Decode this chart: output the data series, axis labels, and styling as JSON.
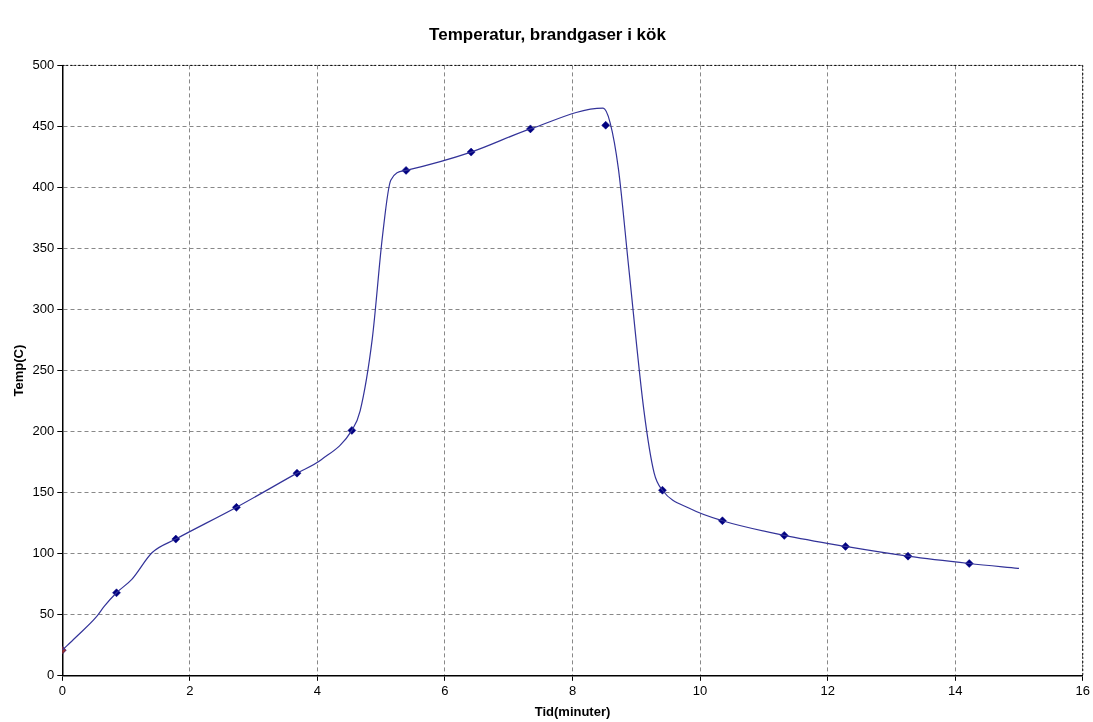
{
  "chart_data": {
    "type": "line",
    "title": "Temperatur, brandgaser i kök",
    "xlabel": "Tid(minuter)",
    "ylabel": "Temp(C)",
    "xlim": [
      0,
      16
    ],
    "xticks": [
      0,
      2,
      4,
      6,
      8,
      10,
      12,
      14,
      16
    ],
    "ylim": [
      0,
      500
    ],
    "yticks": [
      0,
      50,
      100,
      150,
      200,
      250,
      300,
      350,
      400,
      450,
      500
    ],
    "grid": true,
    "legend": false,
    "series": [
      {
        "type": "line",
        "color": "#333399",
        "marker": "none",
        "x": [
          0,
          0.2,
          0.53,
          0.66,
          0.85,
          1.09,
          1.41,
          1.78,
          2.73,
          3.68,
          4.06,
          4.54,
          4.67,
          4.86,
          5.02,
          5.15,
          5.39,
          6.41,
          7.34,
          8.48,
          8.59,
          8.72,
          8.88,
          9.12,
          9.28,
          9.41,
          9.84,
          10.35,
          11.32,
          12.28,
          13.26,
          14.22,
          15
        ],
        "values": [
          21,
          31,
          48,
          57,
          68,
          79,
          101,
          112,
          138,
          166,
          177,
          201,
          217,
          276,
          360,
          406,
          414,
          429,
          448,
          465,
          453,
          415,
          335,
          217,
          166,
          152,
          137,
          127,
          115,
          106,
          98,
          92,
          88
        ]
      },
      {
        "type": "scatter",
        "color": "#000080",
        "colors": [
          "#993333",
          "#000080",
          "#000080",
          "#000080",
          "#000080",
          "#000080",
          "#000080",
          "#000080",
          "#000080",
          "#000080",
          "#000080",
          "#000080",
          "#000080",
          "#000080",
          "#000080",
          "#000080"
        ],
        "marker": "diamond",
        "x": [
          0,
          0.85,
          1.78,
          2.73,
          3.68,
          4.54,
          5.39,
          6.41,
          7.34,
          8.52,
          9.41,
          10.35,
          11.32,
          12.28,
          13.26,
          14.22
        ],
        "values": [
          21,
          68,
          112,
          138,
          166,
          201,
          414,
          429,
          448,
          451,
          152,
          127,
          115,
          106,
          98,
          92
        ]
      }
    ]
  }
}
